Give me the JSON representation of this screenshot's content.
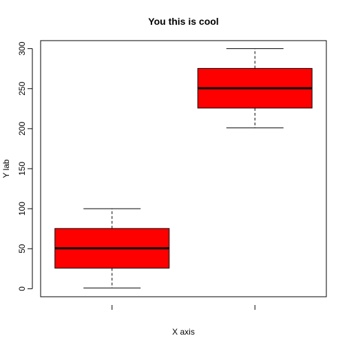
{
  "chart_data": {
    "type": "boxplot",
    "title": "You this is cool",
    "xlabel": "X axis",
    "ylabel": "Y lab",
    "ylim": [
      -10,
      310
    ],
    "yticks": [
      0,
      50,
      100,
      150,
      200,
      250,
      300
    ],
    "ytick_labels": [
      "0",
      "50",
      "100",
      "150",
      "200",
      "250",
      "300"
    ],
    "grid": false,
    "box_fill": "#ff0000",
    "boxes": [
      {
        "min": 1,
        "q1": 25.75,
        "median": 50.5,
        "q3": 75.25,
        "max": 100
      },
      {
        "min": 201,
        "q1": 225.75,
        "median": 250.5,
        "q3": 275.25,
        "max": 300
      }
    ]
  }
}
